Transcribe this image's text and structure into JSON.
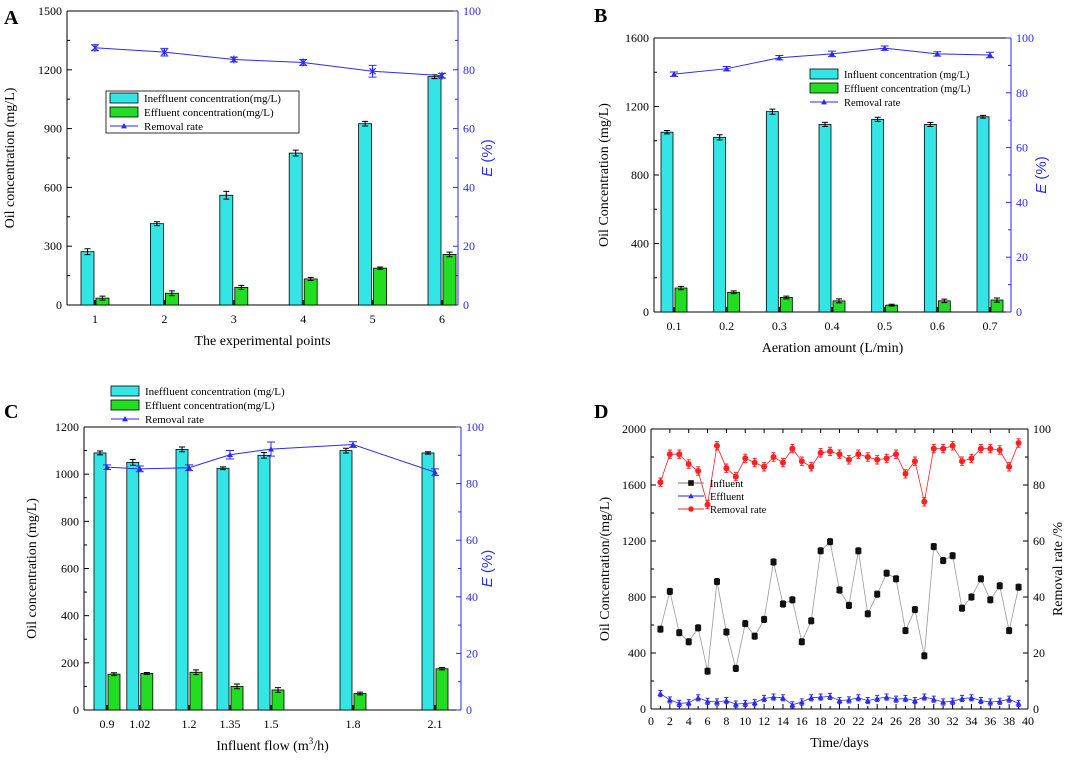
{
  "colors": {
    "influent_bar": "#33e5e5",
    "effluent_bar": "#22dd22",
    "removal_line": "#2a2af0",
    "right_axis": "#2a2af0",
    "d_influent": "#111111",
    "d_effluent": "#2a2af0",
    "d_removal": "#ff2020"
  },
  "chart_data": [
    {
      "panel": "A",
      "type": "bar",
      "categories": [
        "1",
        "2",
        "3",
        "4",
        "5",
        "6"
      ],
      "xlabel": "The experimental points",
      "ylabel": "Oil concentration (mg/L)",
      "y2label_italic": "E",
      "y2label_rest": " (%)",
      "ylim": [
        0,
        1500
      ],
      "yticks": [
        "0",
        "300",
        "600",
        "900",
        "1200",
        "1500"
      ],
      "y2lim": [
        0,
        100
      ],
      "y2ticks": [
        "0",
        "20",
        "40",
        "60",
        "80",
        "100"
      ],
      "legend": [
        "Ineffluent concentration(mg/L)",
        "Effluent concentration(mg/L)",
        "Removal rate"
      ],
      "series": [
        {
          "name": "Influent",
          "values": [
            272,
            415,
            560,
            775,
            925,
            1165
          ],
          "errors": [
            15,
            10,
            20,
            15,
            12,
            10
          ]
        },
        {
          "name": "Effluent",
          "values": [
            35,
            60,
            90,
            133,
            188,
            258
          ],
          "errors": [
            10,
            12,
            10,
            8,
            6,
            12
          ]
        },
        {
          "name": "Removal rate",
          "values": [
            87.5,
            86,
            83.5,
            82.5,
            79.5,
            78
          ],
          "errors": [
            1,
            1.3,
            0.8,
            1,
            2,
            0.8
          ]
        }
      ]
    },
    {
      "panel": "B",
      "type": "bar",
      "categories": [
        "0.1",
        "0.2",
        "0.3",
        "0.4",
        "0.5",
        "0.6",
        "0.7"
      ],
      "xlabel": "Aeration amount (L/min)",
      "ylabel": "Oil Concentration (mg/L)",
      "y2label_italic": "E",
      "y2label_rest": " (%)",
      "ylim": [
        0,
        1600
      ],
      "yticks": [
        "0",
        "400",
        "800",
        "1200",
        "1600"
      ],
      "y2lim": [
        0,
        100
      ],
      "y2ticks": [
        "0",
        "20",
        "40",
        "60",
        "80",
        "100"
      ],
      "legend": [
        "Influent concentration (mg/L)",
        "Effluent concentration (mg/L)",
        "Removal rate"
      ],
      "series": [
        {
          "name": "Influent",
          "values": [
            1050,
            1020,
            1170,
            1095,
            1125,
            1095,
            1140
          ],
          "errors": [
            10,
            15,
            15,
            12,
            12,
            12,
            8
          ]
        },
        {
          "name": "Effluent",
          "values": [
            140,
            115,
            85,
            65,
            40,
            65,
            70
          ],
          "errors": [
            10,
            8,
            8,
            12,
            5,
            10,
            12
          ]
        },
        {
          "name": "Removal rate",
          "values": [
            86.8,
            88.8,
            92.8,
            94.2,
            96.3,
            94.2,
            93.8
          ],
          "errors": [
            0.8,
            0.8,
            0.8,
            1,
            0.8,
            0.8,
            1
          ]
        }
      ]
    },
    {
      "panel": "C",
      "type": "bar",
      "x": [
        0.9,
        1.02,
        1.2,
        1.35,
        1.5,
        1.8,
        2.1
      ],
      "categories": [
        "0.9",
        "1.02",
        "1.2",
        "1.35",
        "1.5",
        "1.8",
        "2.1"
      ],
      "xlabel": "Influent flow (m",
      "xlabel_sup": "3",
      "xlabel_tail": "/h)",
      "ylabel": "Oil concentration (mg/L)",
      "y2label_italic": "E",
      "y2label_rest": " (%)",
      "ylim": [
        0,
        1200
      ],
      "yticks": [
        "0",
        "200",
        "400",
        "600",
        "800",
        "1000",
        "1200"
      ],
      "y2lim": [
        0,
        100
      ],
      "y2ticks": [
        "0",
        "20",
        "40",
        "60",
        "80",
        "100"
      ],
      "legend": [
        "Ineffluent concentration (mg/L)",
        "Effluent concentration(mg/L)",
        "Removal rate"
      ],
      "series": [
        {
          "name": "Influent",
          "values": [
            1090,
            1050,
            1105,
            1025,
            1080,
            1100,
            1090
          ],
          "errors": [
            8,
            12,
            10,
            6,
            12,
            10,
            5
          ]
        },
        {
          "name": "Effluent",
          "values": [
            152,
            155,
            160,
            100,
            85,
            70,
            175
          ],
          "errors": [
            6,
            4,
            10,
            10,
            10,
            6,
            5
          ]
        },
        {
          "name": "Removal rate",
          "values": [
            85.8,
            85.2,
            85.6,
            90.2,
            92.2,
            93.8,
            84
          ],
          "errors": [
            0.8,
            1,
            1,
            1.5,
            2.5,
            1,
            1.2
          ]
        }
      ]
    },
    {
      "panel": "D",
      "type": "line",
      "xlabel": "Time/days",
      "ylabel": "Oil Concentration/(mg/L)",
      "y2label": "Removal rate /%",
      "xlim": [
        0,
        40
      ],
      "xticks": [
        "0",
        "2",
        "4",
        "6",
        "8",
        "10",
        "12",
        "14",
        "16",
        "18",
        "20",
        "22",
        "24",
        "26",
        "28",
        "30",
        "32",
        "34",
        "36",
        "38",
        "40"
      ],
      "ylim": [
        0,
        2000
      ],
      "yticks": [
        "0",
        "400",
        "800",
        "1200",
        "1600",
        "2000"
      ],
      "y2lim": [
        0,
        100
      ],
      "y2ticks": [
        "0",
        "20",
        "40",
        "60",
        "80",
        "100"
      ],
      "legend": [
        "Influent",
        "Effluent",
        "Removal rate"
      ],
      "x": [
        1,
        2,
        3,
        4,
        5,
        6,
        7,
        8,
        9,
        10,
        11,
        12,
        13,
        14,
        15,
        16,
        17,
        18,
        19,
        20,
        21,
        22,
        23,
        24,
        25,
        26,
        27,
        28,
        29,
        30,
        31,
        32,
        33,
        34,
        35,
        36,
        37,
        38,
        39
      ],
      "series": [
        {
          "name": "Influent",
          "values": [
            570,
            840,
            545,
            480,
            580,
            270,
            910,
            550,
            290,
            610,
            520,
            640,
            1050,
            750,
            780,
            480,
            630,
            1130,
            1195,
            850,
            740,
            1130,
            680,
            820,
            970,
            930,
            560,
            710,
            380,
            1160,
            1060,
            1095,
            720,
            800,
            930,
            780,
            880,
            560,
            870
          ]
        },
        {
          "name": "Effluent",
          "values": [
            110,
            65,
            40,
            45,
            80,
            55,
            50,
            60,
            35,
            40,
            45,
            75,
            85,
            80,
            30,
            50,
            80,
            85,
            90,
            60,
            65,
            80,
            60,
            75,
            85,
            70,
            75,
            60,
            85,
            70,
            50,
            55,
            75,
            80,
            60,
            50,
            55,
            70,
            40
          ]
        },
        {
          "name": "Removal rate",
          "values": [
            81,
            91,
            91,
            87.5,
            85,
            73,
            94,
            86,
            83,
            89.5,
            88,
            86.5,
            90,
            88,
            93,
            88.5,
            86.5,
            91.5,
            92,
            91,
            89,
            91,
            90,
            89,
            89.5,
            91,
            84,
            88.5,
            74,
            93,
            93,
            94,
            88.5,
            89.5,
            93,
            93,
            92.5,
            86.5,
            95
          ]
        }
      ]
    }
  ]
}
